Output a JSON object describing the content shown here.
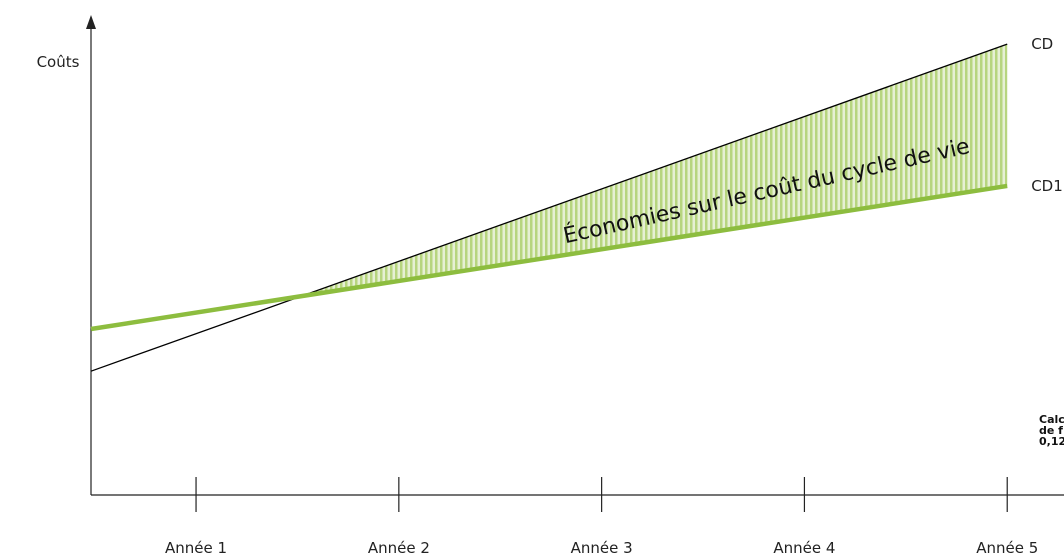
{
  "chart_data": {
    "type": "line",
    "ylabel": "Coûts",
    "x": [
      0.482,
      5
    ],
    "xlim": [
      0.482,
      5.28
    ],
    "ylim": [
      0,
      107
    ],
    "xticks": [
      {
        "value": 1,
        "label": "Année 1"
      },
      {
        "value": 2,
        "label": "Année 2"
      },
      {
        "value": 3,
        "label": "Année 3"
      },
      {
        "value": 4,
        "label": "Année 4"
      },
      {
        "value": 5,
        "label": "Année 5"
      }
    ],
    "series": [
      {
        "name": "CD",
        "color": "#000000",
        "values": [
          27.6,
          100.5
        ]
      },
      {
        "name": "CD1",
        "color": "#8dbd3f",
        "values": [
          37,
          68.9
        ]
      }
    ],
    "area_label": "Économies sur le coût du cycle de vie",
    "area_color": "#8dbd3f",
    "note": [
      "Calc",
      "de f",
      "0,12"
    ]
  }
}
